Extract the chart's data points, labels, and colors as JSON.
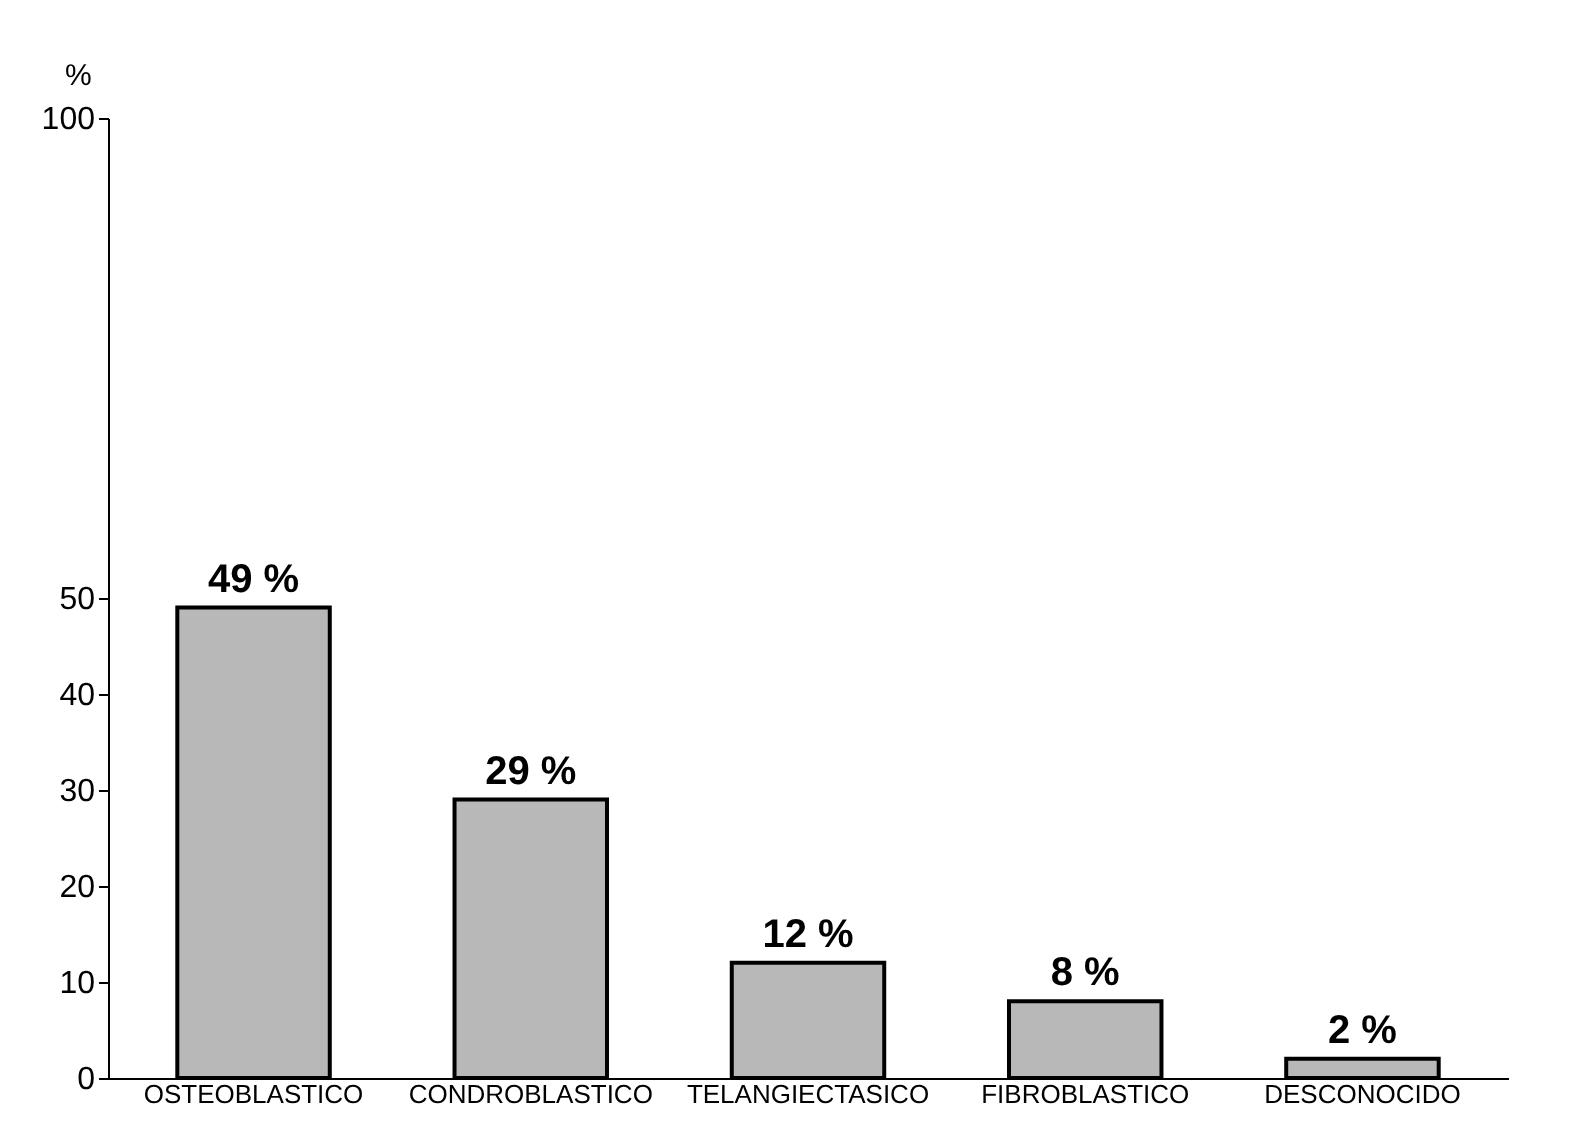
{
  "chart_data": {
    "type": "bar",
    "ylabel": "%",
    "categories": [
      "OSTEOBLASTICO",
      "CONDROBLASTICO",
      "TELANGIECTASICO",
      "FIBROBLASTICO",
      "DESCONOCIDO"
    ],
    "values": [
      49,
      29,
      12,
      8,
      2
    ],
    "value_labels": [
      "49 %",
      "29 %",
      "12 %",
      "8 %",
      "2 %"
    ],
    "color": "#b8b8b8",
    "ylim": [
      0,
      100
    ],
    "yticks": [
      0,
      10,
      20,
      30,
      40,
      50,
      100
    ],
    "grid": false
  }
}
